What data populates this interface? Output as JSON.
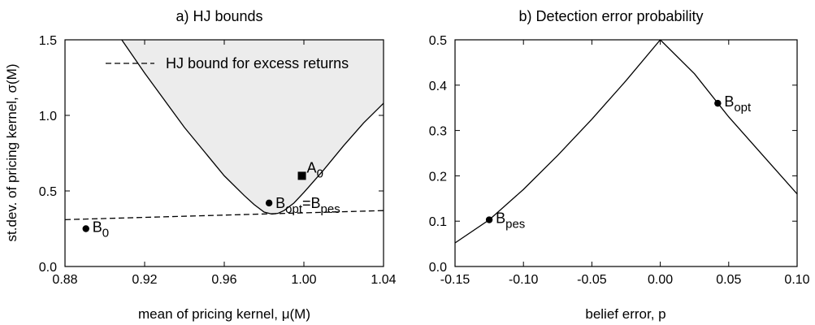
{
  "chart_data": [
    {
      "type": "line",
      "title": "a) HJ bounds",
      "xlabel": "mean of pricing kernel, μ(M)",
      "ylabel": "st.dev. of pricing kernel, σ(M)",
      "xlim": [
        0.88,
        1.04
      ],
      "ylim": [
        0,
        1.5
      ],
      "xticks": [
        0.88,
        0.92,
        0.96,
        1.0,
        1.04
      ],
      "xtick_labels": [
        "0.88",
        "0.92",
        "0.96",
        "1.00",
        "1.04"
      ],
      "yticks": [
        0,
        0.5,
        1.0,
        1.5
      ],
      "ytick_labels": [
        "0.0",
        "0.5",
        "1.0",
        "1.5"
      ],
      "grid": false,
      "legend_position": "top-left",
      "series": [
        {
          "name": "",
          "style": "solid",
          "shaded_above": true,
          "x": [
            0.9085,
            0.92,
            0.93,
            0.94,
            0.95,
            0.96,
            0.97,
            0.975,
            0.98,
            0.984,
            0.987,
            0.99,
            0.995,
            1.0,
            1.01,
            1.02,
            1.03,
            1.04
          ],
          "y": [
            1.5,
            1.28,
            1.1,
            0.92,
            0.76,
            0.6,
            0.47,
            0.41,
            0.36,
            0.347,
            0.352,
            0.37,
            0.42,
            0.49,
            0.64,
            0.8,
            0.95,
            1.08
          ]
        },
        {
          "name": "HJ bound for excess returns",
          "style": "dashed",
          "x": [
            0.88,
            1.04
          ],
          "y": [
            0.31,
            0.37
          ]
        }
      ],
      "points": [
        {
          "label": "A",
          "sub": "0",
          "x": 0.999,
          "y": 0.6,
          "marker": "square"
        },
        {
          "label": "B",
          "sub": "opt",
          "label2": "=B",
          "sub2": "pes",
          "x": 0.9825,
          "y": 0.42,
          "marker": "circle"
        },
        {
          "label": "B",
          "sub": "0",
          "x": 0.8905,
          "y": 0.25,
          "marker": "circle"
        }
      ]
    },
    {
      "type": "line",
      "title": "b) Detection error probability",
      "xlabel": "belief error, p",
      "ylabel": "",
      "xlim": [
        -0.15,
        0.1
      ],
      "ylim": [
        0,
        0.5
      ],
      "xticks": [
        -0.15,
        -0.1,
        -0.05,
        0,
        0.05,
        0.1
      ],
      "xtick_labels": [
        "-0.15",
        "-0.10",
        "-0.05",
        "0.00",
        "0.05",
        "0.10"
      ],
      "yticks": [
        0,
        0.1,
        0.2,
        0.3,
        0.4,
        0.5
      ],
      "ytick_labels": [
        "0.0",
        "0.1",
        "0.2",
        "0.3",
        "0.4",
        "0.5"
      ],
      "grid": false,
      "series": [
        {
          "name": "",
          "style": "solid",
          "x": [
            -0.15,
            -0.125,
            -0.1,
            -0.075,
            -0.05,
            -0.025,
            0.0,
            0.025,
            0.05,
            0.075,
            0.1
          ],
          "y": [
            0.052,
            0.103,
            0.17,
            0.245,
            0.325,
            0.41,
            0.5,
            0.425,
            0.33,
            0.245,
            0.16
          ]
        }
      ],
      "points": [
        {
          "label": "B",
          "sub": "pes",
          "x": -0.125,
          "y": 0.103,
          "marker": "circle"
        },
        {
          "label": "B",
          "sub": "opt",
          "x": 0.042,
          "y": 0.36,
          "marker": "circle"
        }
      ]
    }
  ]
}
